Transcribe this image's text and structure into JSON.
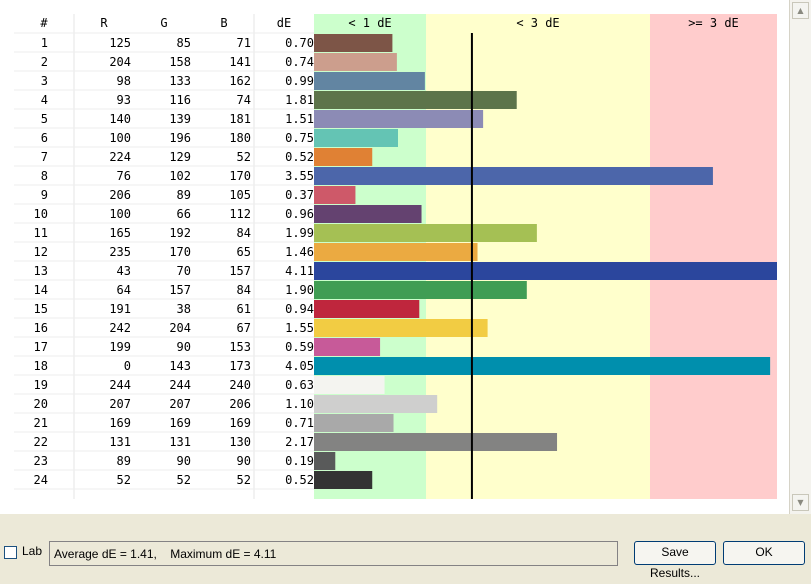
{
  "table": {
    "headers": [
      "#",
      "R",
      "G",
      "B",
      "dE"
    ],
    "bands": [
      "< 1 dE",
      "< 3 dE",
      ">= 3 dE"
    ],
    "band_colors": [
      "#ccffcc",
      "#ffffcc",
      "#ffcccc"
    ],
    "rows": [
      {
        "n": "1",
        "r": "125",
        "g": "85",
        "b": "71",
        "de": "0.70",
        "color": "#7d5547"
      },
      {
        "n": "2",
        "r": "204",
        "g": "158",
        "b": "141",
        "de": "0.74",
        "color": "#cc9e8d"
      },
      {
        "n": "3",
        "r": "98",
        "g": "133",
        "b": "162",
        "de": "0.99",
        "color": "#6285a2"
      },
      {
        "n": "4",
        "r": "93",
        "g": "116",
        "b": "74",
        "de": "1.81",
        "color": "#5d744a"
      },
      {
        "n": "5",
        "r": "140",
        "g": "139",
        "b": "181",
        "de": "1.51",
        "color": "#8c8bb5"
      },
      {
        "n": "6",
        "r": "100",
        "g": "196",
        "b": "180",
        "de": "0.75",
        "color": "#64c4b4"
      },
      {
        "n": "7",
        "r": "224",
        "g": "129",
        "b": "52",
        "de": "0.52",
        "color": "#e08134"
      },
      {
        "n": "8",
        "r": "76",
        "g": "102",
        "b": "170",
        "de": "3.55",
        "color": "#4c66aa"
      },
      {
        "n": "9",
        "r": "206",
        "g": "89",
        "b": "105",
        "de": "0.37",
        "color": "#ce5969"
      },
      {
        "n": "10",
        "r": "100",
        "g": "66",
        "b": "112",
        "de": "0.96",
        "color": "#644270"
      },
      {
        "n": "11",
        "r": "165",
        "g": "192",
        "b": "84",
        "de": "1.99",
        "color": "#a5c054"
      },
      {
        "n": "12",
        "r": "235",
        "g": "170",
        "b": "65",
        "de": "1.46",
        "color": "#ebaa41"
      },
      {
        "n": "13",
        "r": "43",
        "g": "70",
        "b": "157",
        "de": "4.11",
        "color": "#2b469d"
      },
      {
        "n": "14",
        "r": "64",
        "g": "157",
        "b": "84",
        "de": "1.90",
        "color": "#409d54"
      },
      {
        "n": "15",
        "r": "191",
        "g": "38",
        "b": "61",
        "de": "0.94",
        "color": "#bf263d"
      },
      {
        "n": "16",
        "r": "242",
        "g": "204",
        "b": "67",
        "de": "1.55",
        "color": "#f2cc43"
      },
      {
        "n": "17",
        "r": "199",
        "g": "90",
        "b": "153",
        "de": "0.59",
        "color": "#c75a99"
      },
      {
        "n": "18",
        "r": "0",
        "g": "143",
        "b": "173",
        "de": "4.05",
        "color": "#008fad"
      },
      {
        "n": "19",
        "r": "244",
        "g": "244",
        "b": "240",
        "de": "0.63",
        "color": "#f4f4f0"
      },
      {
        "n": "20",
        "r": "207",
        "g": "207",
        "b": "206",
        "de": "1.10",
        "color": "#cfcfce"
      },
      {
        "n": "21",
        "r": "169",
        "g": "169",
        "b": "169",
        "de": "0.71",
        "color": "#a9a9a9"
      },
      {
        "n": "22",
        "r": "131",
        "g": "131",
        "b": "130",
        "de": "2.17",
        "color": "#838382"
      },
      {
        "n": "23",
        "r": "89",
        "g": "90",
        "b": "90",
        "de": "0.19",
        "color": "#595a5a"
      },
      {
        "n": "24",
        "r": "52",
        "g": "52",
        "b": "52",
        "de": "0.52",
        "color": "#343434"
      }
    ],
    "average_de": 1.41
  },
  "footer": {
    "lab_label": "Lab",
    "lab_checked": false,
    "status": "Average dE = 1.41,    Maximum dE = 4.11",
    "save_label": "Save Results...",
    "ok_label": "OK"
  },
  "icons": {
    "scroll_up": "triangle-up",
    "scroll_down": "triangle-down"
  }
}
